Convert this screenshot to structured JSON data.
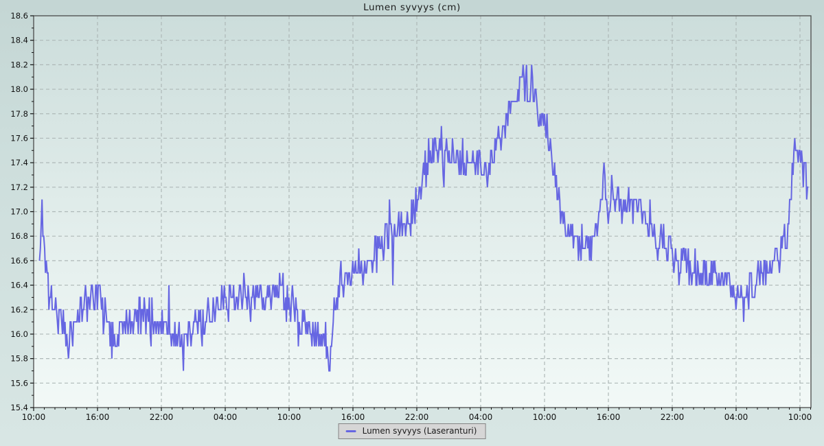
{
  "chart_data": {
    "type": "line",
    "title": "Lumen syvyys (cm)",
    "legend": {
      "position": "bottom-center",
      "label": "Lumen syvyys (Laseranturi)"
    },
    "colors": {
      "line": "#6666e2",
      "grid": "#aeb8b7",
      "frame": "#4a4a4a",
      "tick": "#111111",
      "text": "#111111",
      "legend_bg": "#d6d6d6"
    },
    "x_axis": {
      "unit": "time",
      "hours_span": 73,
      "major_tick_every_hours": 6,
      "minor_tick_every_hours": 1,
      "tick_labels": [
        "10:00",
        "16:00",
        "22:00",
        "04:00",
        "10:00",
        "16:00",
        "22:00",
        "04:00",
        "10:00",
        "16:00",
        "22:00",
        "04:00",
        "10:00"
      ]
    },
    "y_axis": {
      "range": [
        15.4,
        18.6
      ],
      "major_step": 0.2,
      "minor_step": 0.1,
      "tick_labels": [
        "15.4",
        "15.6",
        "15.8",
        "16.0",
        "16.2",
        "16.4",
        "16.6",
        "16.8",
        "17.0",
        "17.2",
        "17.4",
        "17.6",
        "17.8",
        "18.0",
        "18.2",
        "18.4",
        "18.6"
      ]
    },
    "grid": {
      "dash": "5 4",
      "on": true
    },
    "series": [
      {
        "name": "Lumen syvyys (Laseranturi)",
        "trend_points_h_v": [
          [
            0.55,
            16.55
          ],
          [
            0.8,
            17.08
          ],
          [
            1.05,
            16.6
          ],
          [
            1.4,
            16.38
          ],
          [
            1.9,
            16.22
          ],
          [
            2.5,
            16.12
          ],
          [
            3.1,
            15.98
          ],
          [
            3.6,
            16.0
          ],
          [
            4.2,
            16.18
          ],
          [
            4.9,
            16.28
          ],
          [
            5.6,
            16.35
          ],
          [
            6.2,
            16.3
          ],
          [
            6.9,
            16.12
          ],
          [
            7.5,
            16.0
          ],
          [
            8.2,
            16.05
          ],
          [
            9.0,
            16.15
          ],
          [
            10.0,
            16.17
          ],
          [
            11.0,
            16.14
          ],
          [
            12.0,
            16.07
          ],
          [
            13.0,
            16.0
          ],
          [
            13.9,
            15.96
          ],
          [
            14.1,
            15.75
          ],
          [
            14.3,
            15.98
          ],
          [
            15.2,
            16.05
          ],
          [
            16.2,
            16.12
          ],
          [
            17.2,
            16.2
          ],
          [
            18.2,
            16.26
          ],
          [
            19.2,
            16.3
          ],
          [
            20.2,
            16.33
          ],
          [
            21.2,
            16.32
          ],
          [
            22.2,
            16.34
          ],
          [
            23.2,
            16.33
          ],
          [
            23.8,
            16.28
          ],
          [
            24.4,
            16.2
          ],
          [
            25.2,
            16.1
          ],
          [
            26.0,
            16.05
          ],
          [
            26.8,
            15.98
          ],
          [
            27.4,
            15.92
          ],
          [
            27.75,
            15.75
          ],
          [
            28.0,
            15.95
          ],
          [
            28.5,
            16.3
          ],
          [
            29.2,
            16.45
          ],
          [
            30.2,
            16.5
          ],
          [
            31.2,
            16.55
          ],
          [
            32.2,
            16.68
          ],
          [
            33.2,
            16.8
          ],
          [
            34.2,
            16.86
          ],
          [
            35.2,
            16.92
          ],
          [
            36.0,
            17.05
          ],
          [
            36.5,
            17.25
          ],
          [
            37.2,
            17.42
          ],
          [
            38.2,
            17.5
          ],
          [
            39.2,
            17.47
          ],
          [
            40.2,
            17.42
          ],
          [
            41.2,
            17.37
          ],
          [
            42.0,
            17.34
          ],
          [
            42.8,
            17.4
          ],
          [
            43.6,
            17.58
          ],
          [
            44.4,
            17.78
          ],
          [
            45.1,
            17.92
          ],
          [
            45.7,
            18.0
          ],
          [
            45.85,
            18.28
          ],
          [
            46.1,
            18.0
          ],
          [
            46.8,
            17.92
          ],
          [
            47.5,
            17.82
          ],
          [
            48.1,
            17.7
          ],
          [
            48.7,
            17.45
          ],
          [
            49.3,
            17.1
          ],
          [
            49.9,
            16.88
          ],
          [
            50.7,
            16.78
          ],
          [
            51.6,
            16.7
          ],
          [
            52.5,
            16.75
          ],
          [
            53.3,
            16.9
          ],
          [
            53.55,
            17.5
          ],
          [
            53.8,
            17.05
          ],
          [
            54.5,
            17.12
          ],
          [
            55.5,
            17.1
          ],
          [
            56.5,
            17.08
          ],
          [
            57.3,
            16.98
          ],
          [
            58.1,
            16.85
          ],
          [
            59.0,
            16.75
          ],
          [
            60.0,
            16.66
          ],
          [
            61.0,
            16.55
          ],
          [
            62.0,
            16.5
          ],
          [
            63.0,
            16.5
          ],
          [
            64.0,
            16.47
          ],
          [
            65.0,
            16.45
          ],
          [
            66.0,
            16.38
          ],
          [
            66.6,
            16.28
          ],
          [
            67.4,
            16.36
          ],
          [
            68.3,
            16.48
          ],
          [
            69.3,
            16.54
          ],
          [
            70.2,
            16.65
          ],
          [
            70.9,
            16.85
          ],
          [
            71.25,
            17.3
          ],
          [
            71.45,
            17.62
          ],
          [
            71.8,
            17.45
          ],
          [
            72.3,
            17.44
          ],
          [
            72.6,
            17.28
          ],
          [
            72.8,
            17.15
          ]
        ],
        "noise": {
          "seed": 11,
          "step_hours": 0.08,
          "spread": 0.16,
          "outlier_p": 0.03,
          "outlier_amp": 0.3,
          "quantize": 0.1
        },
        "value_min": 15.7,
        "value_max": 18.3
      }
    ]
  }
}
